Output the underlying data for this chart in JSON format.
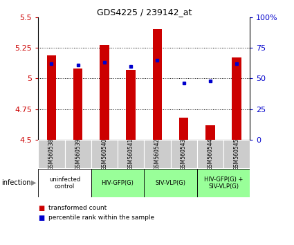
{
  "title": "GDS4225 / 239142_at",
  "samples": [
    "GSM560538",
    "GSM560539",
    "GSM560540",
    "GSM560541",
    "GSM560542",
    "GSM560543",
    "GSM560544",
    "GSM560545"
  ],
  "transformed_count": [
    5.19,
    5.08,
    5.27,
    5.07,
    5.4,
    4.68,
    4.62,
    5.17
  ],
  "percentile_rank": [
    62,
    61,
    63,
    60,
    65,
    46,
    48,
    62
  ],
  "ylim": [
    4.5,
    5.5
  ],
  "yticks": [
    4.5,
    4.75,
    5.0,
    5.25,
    5.5
  ],
  "ytick_labels": [
    "4.5",
    "4.75",
    "5",
    "5.25",
    "5.5"
  ],
  "y2lim": [
    0,
    100
  ],
  "y2ticks": [
    0,
    25,
    50,
    75,
    100
  ],
  "y2tick_labels": [
    "0",
    "25",
    "50",
    "75",
    "100%"
  ],
  "bar_color": "#cc0000",
  "dot_color": "#0000cc",
  "bar_bottom": 4.5,
  "groups": [
    {
      "label": "uninfected\ncontrol",
      "start": 0,
      "end": 2,
      "color": "#ffffff"
    },
    {
      "label": "HIV-GFP(G)",
      "start": 2,
      "end": 4,
      "color": "#99ff99"
    },
    {
      "label": "SIV-VLP(G)",
      "start": 4,
      "end": 6,
      "color": "#99ff99"
    },
    {
      "label": "HIV-GFP(G) +\nSIV-VLP(G)",
      "start": 6,
      "end": 8,
      "color": "#99ff99"
    }
  ],
  "tick_color": "#cc0000",
  "tick2_color": "#0000cc",
  "cell_bg": "#cccccc",
  "figsize": [
    4.25,
    3.54
  ],
  "dpi": 100
}
